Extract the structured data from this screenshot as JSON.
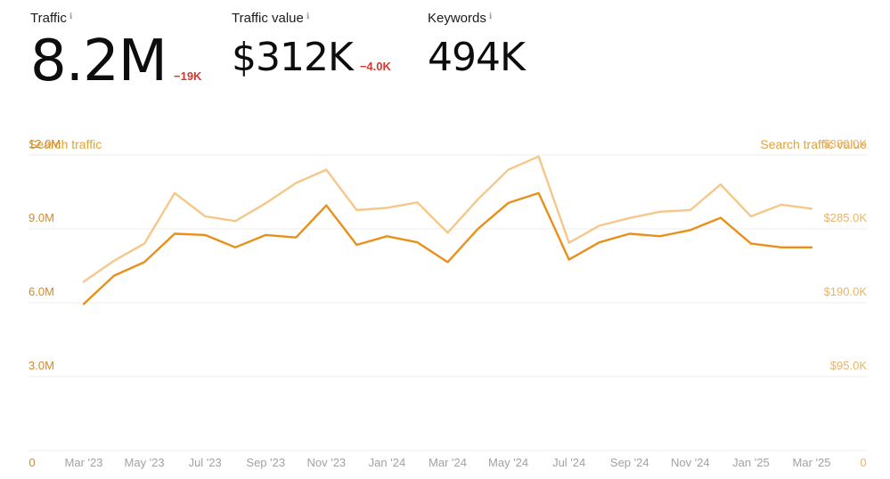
{
  "metrics": {
    "traffic": {
      "label": "Traffic",
      "value": "8.2M",
      "delta": "−19K"
    },
    "traffic_value": {
      "label": "Traffic value",
      "value": "$312K",
      "delta": "−4.0K"
    },
    "keywords": {
      "label": "Keywords",
      "value": "494K"
    }
  },
  "colors": {
    "search_traffic": "#e8901a",
    "search_traffic_value": "#f5c88a",
    "delta_negative": "#d33a2f"
  },
  "chart_data": {
    "type": "line",
    "left_axis_title": "Search traffic",
    "right_axis_title": "Search traffic value",
    "left_ticks": [
      "0",
      "3.0M",
      "6.0M",
      "9.0M",
      "12.0M"
    ],
    "right_ticks": [
      "0",
      "$95.0K",
      "$190.0K",
      "$285.0K",
      "$380.0K"
    ],
    "x_tick_labels": [
      "Mar '23",
      "May '23",
      "Jul '23",
      "Sep '23",
      "Nov '23",
      "Jan '24",
      "Mar '24",
      "May '24",
      "Jul '24",
      "Sep '24",
      "Nov '24",
      "Jan '25",
      "Mar '25"
    ],
    "x": [
      "Mar '23",
      "Apr '23",
      "May '23",
      "Jun '23",
      "Jul '23",
      "Aug '23",
      "Sep '23",
      "Oct '23",
      "Nov '23",
      "Dec '23",
      "Jan '24",
      "Feb '24",
      "Mar '24",
      "Apr '24",
      "May '24",
      "Jun '24",
      "Jul '24",
      "Aug '24",
      "Sep '24",
      "Oct '24",
      "Nov '24",
      "Dec '24",
      "Jan '25",
      "Feb '25",
      "Mar '25"
    ],
    "ylim_left": [
      0,
      12000000
    ],
    "ylim_right": [
      0,
      380000
    ],
    "grid": true,
    "series": [
      {
        "axis": "left",
        "color": "#e8901a",
        "values": [
          5950000,
          7100000,
          7650000,
          8800000,
          8750000,
          8250000,
          8750000,
          8650000,
          9950000,
          8350000,
          8700000,
          8450000,
          7650000,
          9000000,
          10050000,
          10450000,
          7750000,
          8450000,
          8800000,
          8700000,
          8950000,
          9450000,
          8400000,
          8250000,
          8250000
        ]
      },
      {
        "axis": "right",
        "color": "#f5c88a",
        "values": [
          217000,
          244000,
          266000,
          331000,
          301000,
          295000,
          318000,
          344000,
          361000,
          309000,
          312000,
          319000,
          280000,
          323000,
          361000,
          378000,
          267000,
          289000,
          299000,
          307000,
          309000,
          342000,
          301000,
          316000,
          311000
        ]
      }
    ]
  }
}
